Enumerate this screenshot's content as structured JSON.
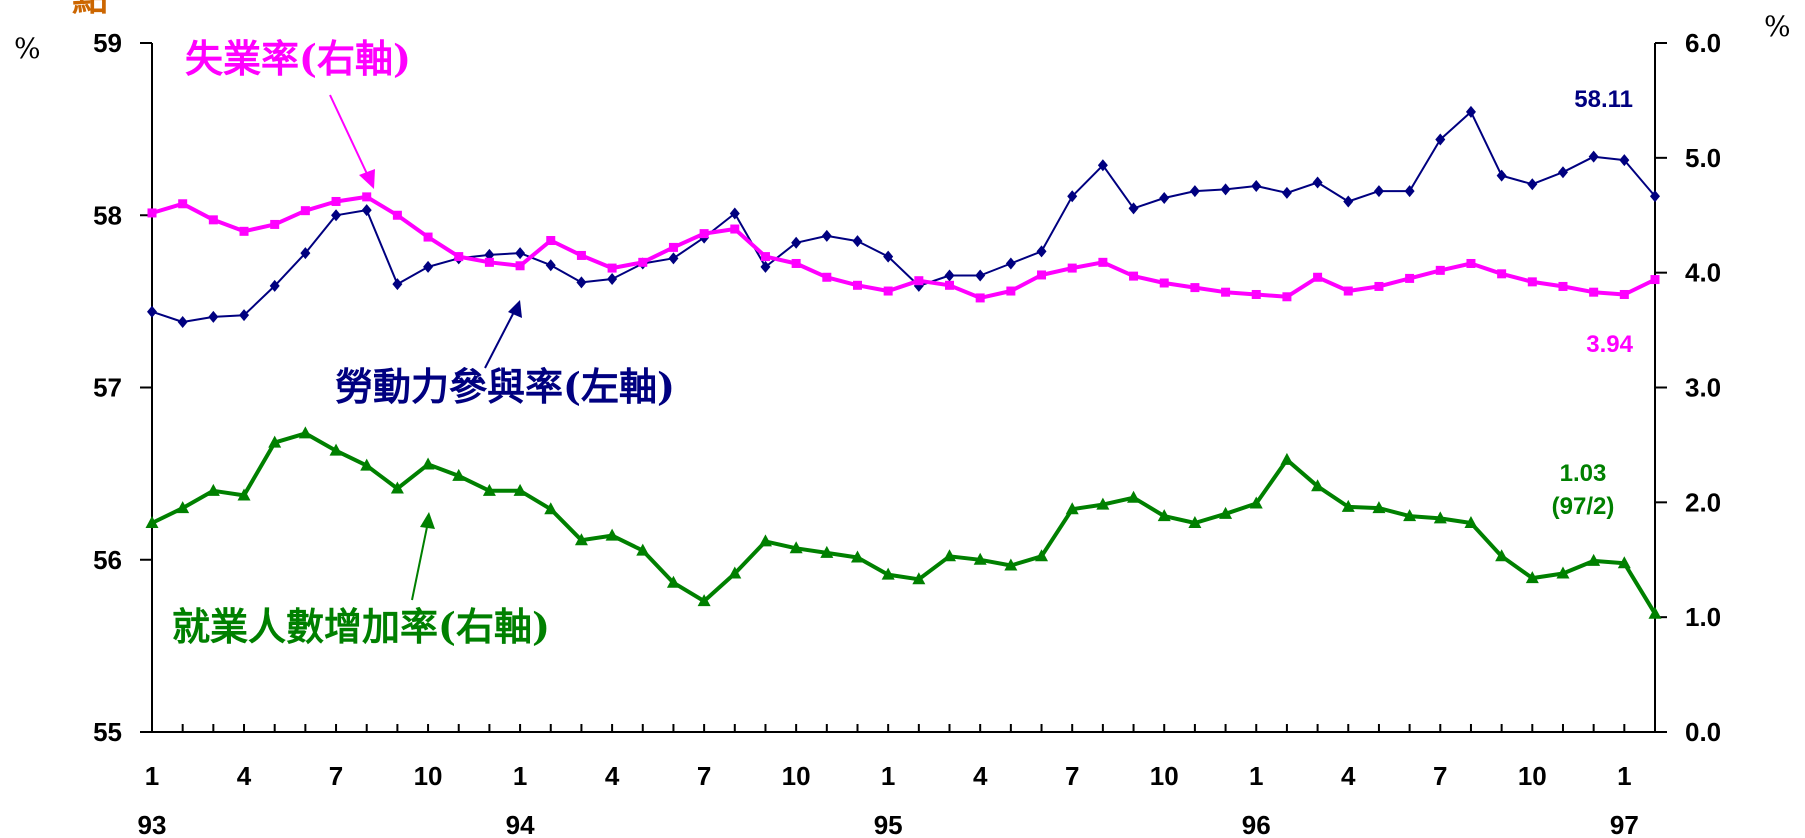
{
  "page": {
    "corner_text": "點"
  },
  "chart_data": {
    "type": "line",
    "x_month_labels": [
      "1",
      "4",
      "7",
      "10",
      "1",
      "4",
      "7",
      "10",
      "1",
      "4",
      "7",
      "10",
      "1",
      "4",
      "7",
      "10",
      "1"
    ],
    "x_year_labels": [
      "93",
      "94",
      "95",
      "96",
      "97"
    ],
    "left_axis": {
      "unit": "%",
      "ylim": [
        55,
        59
      ],
      "ticks": [
        "55",
        "56",
        "57",
        "58",
        "59"
      ]
    },
    "right_axis": {
      "unit": "%",
      "ylim": [
        0.0,
        6.0
      ],
      "ticks": [
        "0.0",
        "1.0",
        "2.0",
        "3.0",
        "4.0",
        "5.0",
        "6.0"
      ]
    },
    "colors": {
      "participation": "#000080",
      "unemployment": "#ff00ff",
      "employment": "#008000",
      "arrow": "#ff00ff"
    },
    "series": [
      {
        "key": "participation",
        "axis": "left",
        "annotation": "勞動力參與率(左軸)",
        "last_label": "58.11",
        "values": [
          57.44,
          57.38,
          57.41,
          57.42,
          57.59,
          57.78,
          58.0,
          58.03,
          57.6,
          57.7,
          57.75,
          57.77,
          57.78,
          57.71,
          57.61,
          57.63,
          57.72,
          57.75,
          57.87,
          58.01,
          57.7,
          57.84,
          57.88,
          57.85,
          57.76,
          57.59,
          57.65,
          57.65,
          57.72,
          57.79,
          58.11,
          58.29,
          58.04,
          58.1,
          58.14,
          58.15,
          58.17,
          58.13,
          58.19,
          58.08,
          58.14,
          58.14,
          58.44,
          58.6,
          58.23,
          58.18,
          58.25,
          58.34,
          58.32,
          58.11
        ]
      },
      {
        "key": "unemployment",
        "axis": "right",
        "annotation": "失業率(右軸)",
        "last_label": "3.94",
        "values": [
          4.52,
          4.6,
          4.46,
          4.36,
          4.42,
          4.54,
          4.62,
          4.66,
          4.5,
          4.31,
          4.14,
          4.09,
          4.06,
          4.28,
          4.15,
          4.04,
          4.09,
          4.22,
          4.34,
          4.38,
          4.14,
          4.08,
          3.96,
          3.89,
          3.84,
          3.93,
          3.89,
          3.78,
          3.84,
          3.98,
          4.04,
          4.09,
          3.97,
          3.91,
          3.87,
          3.83,
          3.81,
          3.79,
          3.96,
          3.84,
          3.88,
          3.95,
          4.02,
          4.08,
          3.99,
          3.92,
          3.88,
          3.83,
          3.81,
          3.94
        ]
      },
      {
        "key": "employment",
        "axis": "right",
        "annotation": "就業人數增加率(右軸)",
        "last_label": "1.03",
        "last_label_sub": "(97/2)",
        "values": [
          1.82,
          1.95,
          2.1,
          2.06,
          2.52,
          2.6,
          2.45,
          2.32,
          2.12,
          2.33,
          2.23,
          2.1,
          2.1,
          1.94,
          1.67,
          1.71,
          1.58,
          1.3,
          1.14,
          1.38,
          1.66,
          1.6,
          1.56,
          1.52,
          1.37,
          1.33,
          1.53,
          1.5,
          1.45,
          1.53,
          1.94,
          1.98,
          2.04,
          1.88,
          1.82,
          1.9,
          1.99,
          2.37,
          2.14,
          1.96,
          1.95,
          1.88,
          1.86,
          1.82,
          1.53,
          1.34,
          1.38,
          1.49,
          1.47,
          1.03
        ]
      }
    ]
  }
}
